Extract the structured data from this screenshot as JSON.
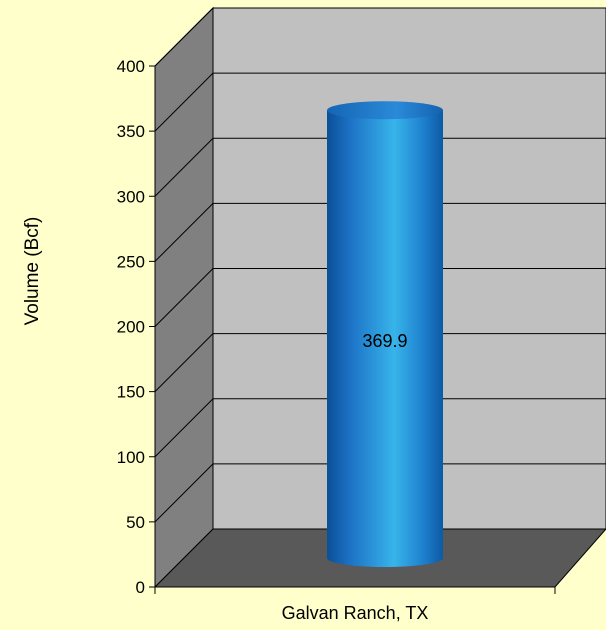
{
  "chart_data": {
    "type": "bar",
    "style": "3d-cylinder",
    "title": "",
    "categories": [
      "Galvan Ranch, TX"
    ],
    "values": [
      369.9
    ],
    "data_labels": [
      "369.9"
    ],
    "xlabel": "",
    "ylabel": "Volume (Bcf)",
    "ylim": [
      0,
      400
    ],
    "yticks": [
      0,
      50,
      100,
      150,
      200,
      250,
      300,
      350,
      400
    ],
    "grid": true,
    "legend": "none",
    "colors": {
      "background": "#ffffcc",
      "back_wall": "#c0c0c0",
      "side_wall": "#808080",
      "floor": "#595959",
      "bar": "#1a75c9",
      "grid": "#000000"
    }
  }
}
